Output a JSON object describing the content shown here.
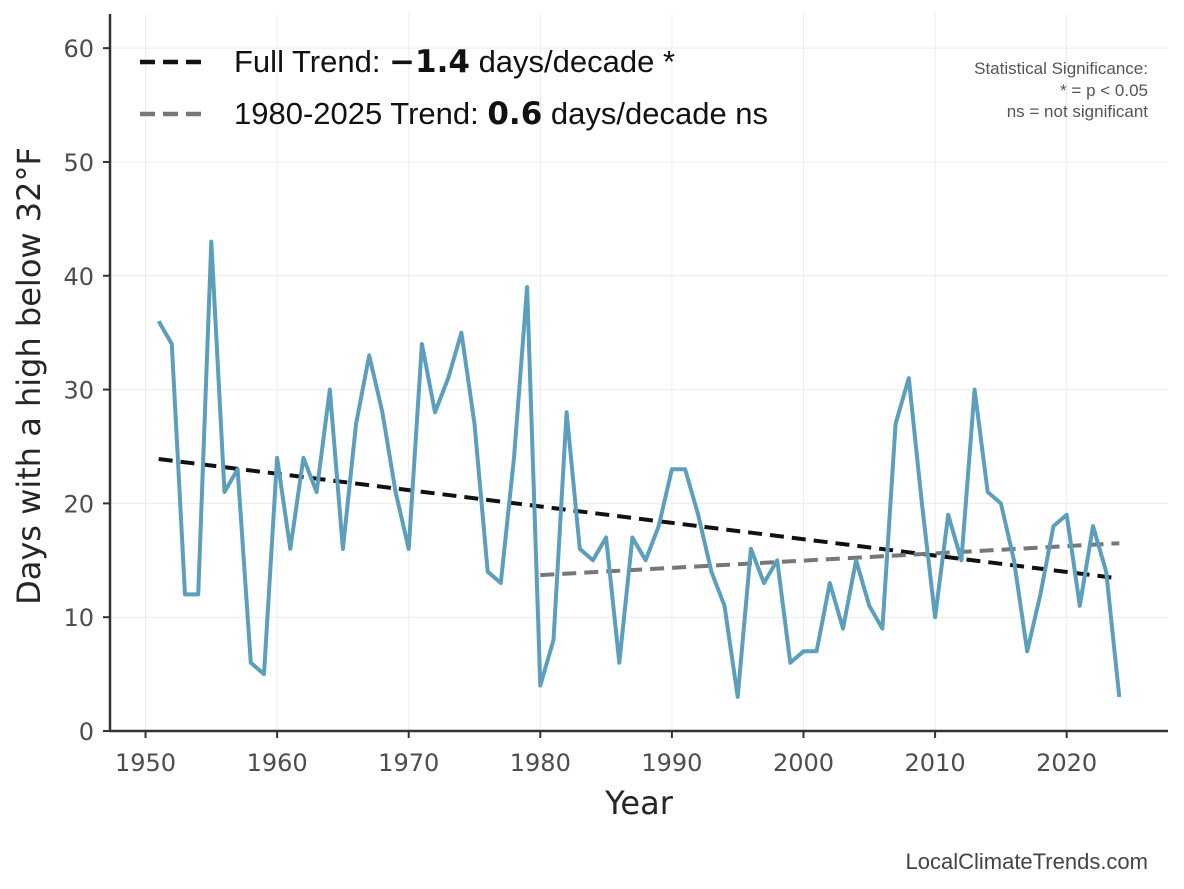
{
  "chart_data": {
    "type": "line",
    "xlabel": "Year",
    "ylabel": "Days with a high below 32°F",
    "xlim": [
      1947.3,
      2027.7
    ],
    "ylim": [
      0,
      63
    ],
    "x_ticks": [
      1950,
      1960,
      1970,
      1980,
      1990,
      2000,
      2010,
      2020
    ],
    "y_ticks": [
      0,
      10,
      20,
      30,
      40,
      50,
      60
    ],
    "grid": true,
    "series": [
      {
        "name": "Days with a high below 32°F",
        "color": "#5b9fbd",
        "x": [
          1951,
          1952,
          1953,
          1954,
          1955,
          1956,
          1957,
          1958,
          1959,
          1960,
          1961,
          1962,
          1963,
          1964,
          1965,
          1966,
          1967,
          1968,
          1969,
          1970,
          1971,
          1972,
          1973,
          1974,
          1975,
          1976,
          1977,
          1978,
          1979,
          1980,
          1981,
          1982,
          1983,
          1984,
          1985,
          1986,
          1987,
          1988,
          1989,
          1990,
          1991,
          1992,
          1993,
          1994,
          1995,
          1996,
          1997,
          1998,
          1999,
          2000,
          2001,
          2002,
          2003,
          2004,
          2005,
          2006,
          2007,
          2008,
          2009,
          2010,
          2011,
          2012,
          2013,
          2014,
          2015,
          2016,
          2017,
          2018,
          2019,
          2020,
          2021,
          2022,
          2023,
          2024
        ],
        "values": [
          36,
          34,
          12,
          12,
          43,
          21,
          23,
          6,
          5,
          24,
          16,
          24,
          21,
          30,
          16,
          27,
          33,
          28,
          21,
          16,
          34,
          28,
          31,
          35,
          27,
          14,
          13,
          24,
          39,
          4,
          8,
          28,
          16,
          15,
          17,
          6,
          17,
          15,
          18,
          23,
          23,
          19,
          14,
          11,
          3,
          16,
          13,
          15,
          6,
          7,
          7,
          13,
          9,
          15,
          11,
          9,
          27,
          31,
          20,
          10,
          19,
          15,
          30,
          21,
          20,
          15,
          7,
          12,
          18,
          19,
          11,
          18,
          14,
          3
        ]
      }
    ],
    "trends": [
      {
        "name": "Full Trend",
        "style": "dashed",
        "color": "#111111",
        "x": [
          1951,
          2024
        ],
        "y": [
          23.9,
          13.4
        ],
        "legend_prefix": "Full Trend: ",
        "legend_value": "−1.4",
        "legend_suffix": " days/decade *"
      },
      {
        "name": "1980-2025 Trend",
        "style": "dashed",
        "color": "#777777",
        "x": [
          1980,
          2024
        ],
        "y": [
          13.7,
          16.5
        ],
        "legend_prefix": "1980-2025 Trend: ",
        "legend_value": "0.6",
        "legend_suffix": " days/decade ns"
      }
    ],
    "significance_note": [
      "Statistical Significance:",
      "* = p < 0.05",
      "ns = not significant"
    ],
    "source": "LocalClimateTrends.com",
    "legend_position": "top-left"
  }
}
